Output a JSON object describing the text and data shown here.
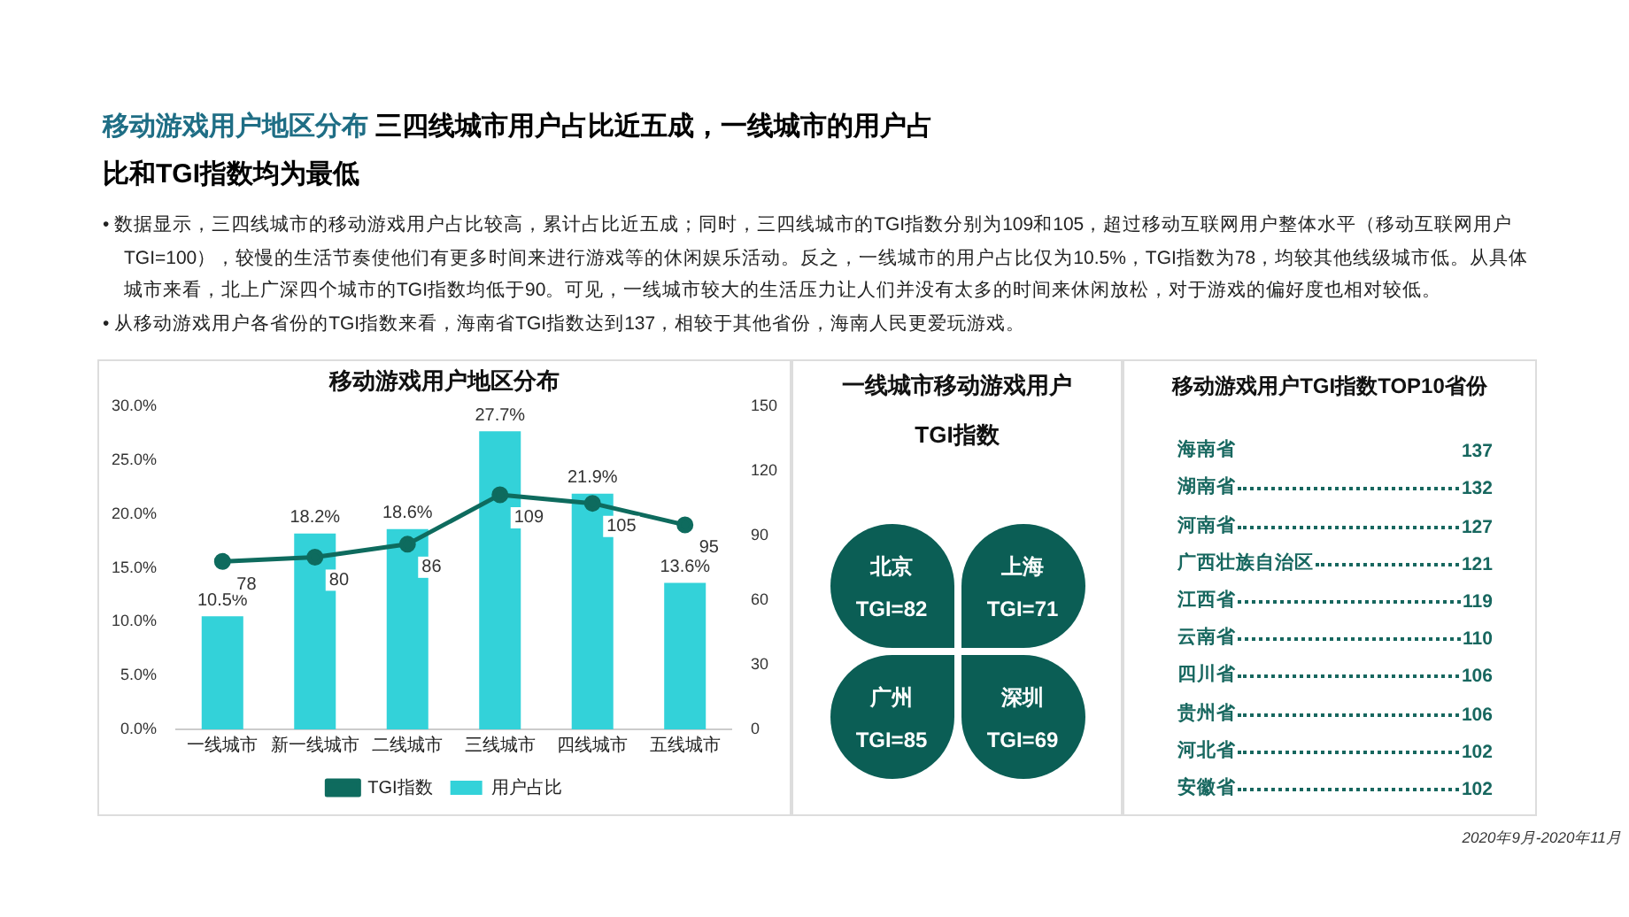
{
  "chart_data": [
    {
      "type": "other",
      "title": "移动游戏用户地区分布",
      "subtitle": "三四线城市用户占比近五成，一线城市的用户占比和TGI指数均为最低",
      "annotations": [
        "• 数据显示，三四线城市的移动游戏用户占比较高，累计占比近五成；同时，三四线城市的TGI指数分别为109和105，超过移动互联网用户整体水平（移动互联网用户TGI=100），较慢的生活节奏使他们有更多时间来进行游戏等的休闲娱乐活动。反之，一线城市的用户占比仅为10.5%，TGI指数为78，均较其他线级城市低。从具体城市来看，北上广深四个城市的TGI指数均低于90。可见，一线城市较大的生活压力让人们并没有太多的时间来休闲放松，对于游戏的偏好度也相对较低。",
        "• 从移动游戏用户各省份的TGI指数来看，海南省TGI指数达到137，相较于其他省份，海南人民更爱玩游戏。",
        "2020年9月-2020年11月"
      ]
    },
    {
      "type": "bar",
      "title": "移动游戏用户地区分布",
      "categories": [
        "一线城市",
        "新一线城市",
        "二线城市",
        "三线城市",
        "四线城市",
        "五线城市"
      ],
      "series": [
        {
          "name": "用户占比",
          "type": "bar",
          "color": "#33d2d9",
          "values": [
            10.5,
            18.2,
            18.6,
            27.7,
            21.9,
            13.6
          ],
          "value_labels": [
            "10.5%",
            "18.2%",
            "18.6%",
            "27.7%",
            "21.9%",
            "13.6%"
          ]
        },
        {
          "name": "TGI指数",
          "type": "line",
          "axis": "y2",
          "color": "#0e6b5e",
          "values": [
            78,
            80,
            86,
            109,
            105,
            95
          ],
          "value_labels": [
            "78",
            "80",
            "86",
            "109",
            "105",
            "95"
          ]
        }
      ],
      "ylim": [
        0,
        30
      ],
      "yticks": [
        {
          "value": 0,
          "label": "0.0%"
        },
        {
          "value": 5,
          "label": "5.0%"
        },
        {
          "value": 10,
          "label": "10.0%"
        },
        {
          "value": 15,
          "label": "15.0%"
        },
        {
          "value": 20,
          "label": "20.0%"
        },
        {
          "value": 25,
          "label": "25.0%"
        },
        {
          "value": 30,
          "label": "30.0%"
        }
      ],
      "y2lim": [
        0,
        150
      ],
      "y2ticks": [
        0,
        30,
        60,
        90,
        120,
        150
      ],
      "marker": "circle",
      "grid": false,
      "legend": "bottom"
    },
    {
      "type": "other",
      "title": "一线城市移动游戏用户\nTGI指数",
      "categories": [
        "北京",
        "上海",
        "广州",
        "深圳"
      ],
      "values": [
        82,
        71,
        85,
        69
      ],
      "value_labels": [
        "TGI=82",
        "TGI=71",
        "TGI=85",
        "TGI=69"
      ],
      "colors": [
        "#0b5e55",
        "#0b5e55",
        "#0b5e55",
        "#0b5e55"
      ]
    },
    {
      "type": "other",
      "title": "移动游戏用户TGI指数TOP10省份",
      "categories": [
        "海南省",
        "湖南省",
        "河南省",
        "广西壮族自治区",
        "江西省",
        "云南省",
        "四川省",
        "贵州省",
        "河北省",
        "安徽省"
      ],
      "values": [
        137,
        132,
        127,
        121,
        119,
        110,
        106,
        106,
        102,
        102
      ],
      "data_labels": true,
      "color": "#17675f"
    }
  ]
}
